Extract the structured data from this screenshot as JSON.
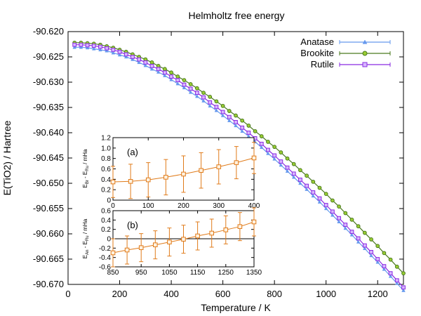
{
  "chart_data": [
    {
      "type": "line",
      "title": "Helmholtz free energy",
      "xlabel": "Temperature / K",
      "ylabel": "E(TiO2) / Hartree",
      "xlim": [
        0,
        1300
      ],
      "ylim": [
        -90.67,
        -90.62
      ],
      "x_ticks": [
        "0",
        "200",
        "400",
        "600",
        "800",
        "1000",
        "1200"
      ],
      "y_ticks": [
        "-90.620",
        "-90.625",
        "-90.630",
        "-90.635",
        "-90.640",
        "-90.645",
        "-90.650",
        "-90.655",
        "-90.660",
        "-90.665",
        "-90.670"
      ],
      "legend_position": "top-right",
      "series": [
        {
          "name": "Anatase",
          "color": "#6699ee",
          "marker": "triangle",
          "x": [
            25,
            50,
            75,
            100,
            125,
            150,
            175,
            200,
            225,
            250,
            275,
            300,
            325,
            350,
            375,
            400,
            425,
            450,
            475,
            500,
            525,
            550,
            575,
            600,
            625,
            650,
            675,
            700,
            725,
            750,
            775,
            800,
            825,
            850,
            875,
            900,
            925,
            950,
            975,
            1000,
            1025,
            1050,
            1075,
            1100,
            1125,
            1150,
            1175,
            1200,
            1225,
            1250,
            1275,
            1300
          ],
          "y": [
            -90.6231,
            -90.6231,
            -90.6232,
            -90.6234,
            -90.6236,
            -90.6238,
            -90.6242,
            -90.6246,
            -90.625,
            -90.6255,
            -90.6261,
            -90.6267,
            -90.6274,
            -90.628,
            -90.6287,
            -90.6295,
            -90.6303,
            -90.6311,
            -90.632,
            -90.6328,
            -90.6337,
            -90.6347,
            -90.6356,
            -90.6366,
            -90.6376,
            -90.6386,
            -90.6397,
            -90.6407,
            -90.6418,
            -90.6429,
            -90.6441,
            -90.6452,
            -90.6464,
            -90.6476,
            -90.6488,
            -90.65,
            -90.6512,
            -90.6525,
            -90.6537,
            -90.655,
            -90.6563,
            -90.6576,
            -90.6589,
            -90.6602,
            -90.6616,
            -90.6629,
            -90.6643,
            -90.6656,
            -90.667,
            -90.6684,
            -90.6698,
            -90.6712
          ]
        },
        {
          "name": "Brookite",
          "color": "#4a7a1e",
          "marker": "circle",
          "x": [
            25,
            50,
            75,
            100,
            125,
            150,
            175,
            200,
            225,
            250,
            275,
            300,
            325,
            350,
            375,
            400,
            425,
            450,
            475,
            500,
            525,
            550,
            575,
            600,
            625,
            650,
            675,
            700,
            725,
            750,
            775,
            800,
            825,
            850,
            875,
            900,
            925,
            950,
            975,
            1000,
            1025,
            1050,
            1075,
            1100,
            1125,
            1150,
            1175,
            1200,
            1225,
            1250,
            1275,
            1300
          ],
          "y": [
            -90.6222,
            -90.6222,
            -90.6223,
            -90.6224,
            -90.6226,
            -90.6229,
            -90.6232,
            -90.6236,
            -90.624,
            -90.6245,
            -90.625,
            -90.6255,
            -90.6261,
            -90.6268,
            -90.6274,
            -90.6281,
            -90.6289,
            -90.6296,
            -90.6304,
            -90.6312,
            -90.6321,
            -90.6329,
            -90.6338,
            -90.6347,
            -90.6357,
            -90.6366,
            -90.6376,
            -90.6386,
            -90.6397,
            -90.6407,
            -90.6418,
            -90.6428,
            -90.6439,
            -90.6451,
            -90.6462,
            -90.6474,
            -90.6485,
            -90.6497,
            -90.6509,
            -90.6521,
            -90.6534,
            -90.6546,
            -90.6559,
            -90.6572,
            -90.6585,
            -90.6598,
            -90.6611,
            -90.6624,
            -90.6638,
            -90.6651,
            -90.6665,
            -90.6678
          ]
        },
        {
          "name": "Rutile",
          "color": "#8a2be2",
          "marker": "square",
          "x": [
            25,
            50,
            75,
            100,
            125,
            150,
            175,
            200,
            225,
            250,
            275,
            300,
            325,
            350,
            375,
            400,
            425,
            450,
            475,
            500,
            525,
            550,
            575,
            600,
            625,
            650,
            675,
            700,
            725,
            750,
            775,
            800,
            825,
            850,
            875,
            900,
            925,
            950,
            975,
            1000,
            1025,
            1050,
            1075,
            1100,
            1125,
            1150,
            1175,
            1200,
            1225,
            1250,
            1275,
            1300
          ],
          "y": [
            -90.6226,
            -90.6226,
            -90.6227,
            -90.6228,
            -90.623,
            -90.6233,
            -90.6236,
            -90.624,
            -90.6245,
            -90.625,
            -90.6255,
            -90.6261,
            -90.6268,
            -90.6274,
            -90.6281,
            -90.6289,
            -90.6296,
            -90.6305,
            -90.6313,
            -90.6321,
            -90.633,
            -90.634,
            -90.6349,
            -90.6359,
            -90.6369,
            -90.6379,
            -90.639,
            -90.64,
            -90.6411,
            -90.6422,
            -90.6434,
            -90.6445,
            -90.6457,
            -90.6469,
            -90.6481,
            -90.6493,
            -90.6505,
            -90.6518,
            -90.653,
            -90.6543,
            -90.6556,
            -90.6569,
            -90.6582,
            -90.6596,
            -90.6609,
            -90.6623,
            -90.6636,
            -90.665,
            -90.6664,
            -90.6678,
            -90.6692,
            -90.6706
          ]
        }
      ]
    },
    {
      "type": "line",
      "panel_label": "(a)",
      "ylabel": "E_Br - E_Ru / mHa",
      "xlim": [
        0,
        400
      ],
      "ylim": [
        0,
        1.2
      ],
      "x_ticks": [
        "0",
        "100",
        "200",
        "300",
        "400"
      ],
      "y_ticks": [
        "0",
        "0.2",
        "0.4",
        "0.6",
        "0.8",
        "1.0",
        "1.2"
      ],
      "series": [
        {
          "color": "#e07b1a",
          "marker": "square",
          "x": [
            0,
            50,
            100,
            150,
            200,
            250,
            300,
            350,
            400
          ],
          "y": [
            0.35,
            0.36,
            0.39,
            0.44,
            0.5,
            0.57,
            0.64,
            0.72,
            0.81
          ],
          "err": [
            0.3,
            0.33,
            0.33,
            0.34,
            0.35,
            0.34,
            0.33,
            0.31,
            0.3
          ]
        }
      ]
    },
    {
      "type": "line",
      "panel_label": "(b)",
      "ylabel": "E_An - E_Ru / mHa",
      "xlim": [
        850,
        1350
      ],
      "ylim": [
        -0.6,
        0.6
      ],
      "x_ticks": [
        "850",
        "950",
        "1050",
        "1150",
        "1250",
        "1350"
      ],
      "y_ticks": [
        "-0.6",
        "-0.4",
        "-0.2",
        "0",
        "0.2",
        "0.4",
        "0.6"
      ],
      "series": [
        {
          "color": "#e07b1a",
          "marker": "square",
          "x": [
            850,
            900,
            950,
            1000,
            1050,
            1100,
            1150,
            1200,
            1250,
            1300,
            1350
          ],
          "y": [
            -0.3,
            -0.24,
            -0.19,
            -0.13,
            -0.07,
            -0.01,
            0.06,
            0.12,
            0.19,
            0.26,
            0.36
          ],
          "err": [
            0.3,
            0.3,
            0.3,
            0.3,
            0.3,
            0.3,
            0.3,
            0.3,
            0.3,
            0.3,
            0.3
          ]
        }
      ]
    }
  ]
}
